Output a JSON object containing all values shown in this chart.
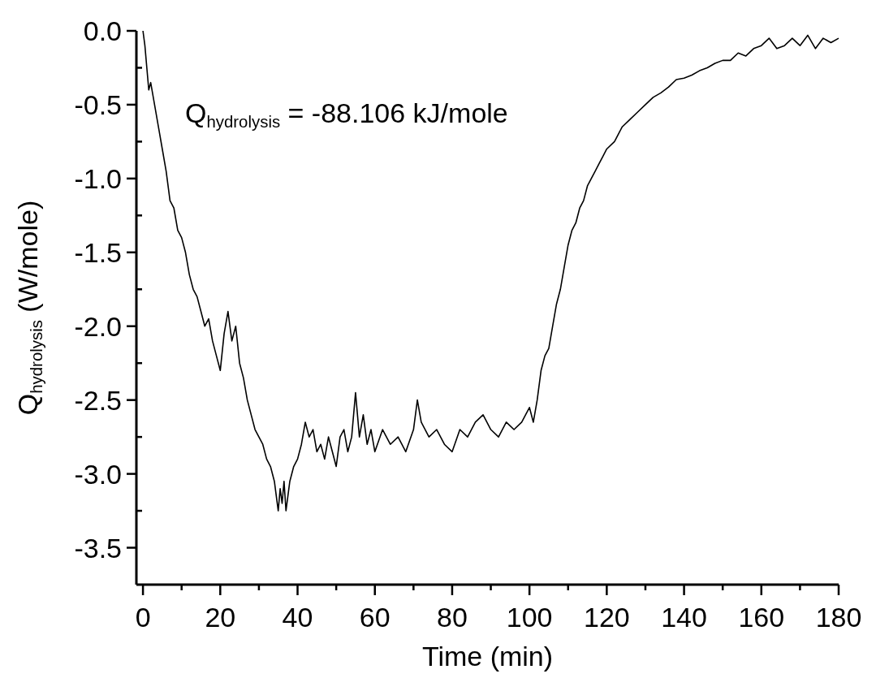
{
  "chart_data": {
    "type": "line",
    "xlabel": "Time (min)",
    "ylabel": "Q$_{hydrolysis}$ (W/mole)",
    "annotations": [
      "Q$_{hydrolysis}$ = -88.106 kJ/mole"
    ],
    "xlim": [
      -1.7,
      180
    ],
    "ylim": [
      -3.75,
      0
    ],
    "xticks": [
      0,
      {
        "value": 10,
        "label": null
      },
      20,
      {
        "value": 30,
        "label": null
      },
      40,
      {
        "value": 50,
        "label": null
      },
      60,
      {
        "value": 70,
        "label": null
      },
      80,
      {
        "value": 90,
        "label": null
      },
      100,
      {
        "value": 110,
        "label": null
      },
      120,
      {
        "value": 130,
        "label": null
      },
      140,
      {
        "value": 150,
        "label": null
      },
      160,
      {
        "value": 170,
        "label": null
      },
      180
    ],
    "yticks": [
      {
        "value": 0,
        "label": "0.0"
      },
      {
        "value": -0.25,
        "label": null
      },
      {
        "value": -0.5,
        "label": "-0.5"
      },
      {
        "value": -0.75,
        "label": null
      },
      {
        "value": -1,
        "label": "-1.0"
      },
      {
        "value": -1.25,
        "label": null
      },
      {
        "value": -1.5,
        "label": "-1.5"
      },
      {
        "value": -1.75,
        "label": null
      },
      {
        "value": -2,
        "label": "-2.0"
      },
      {
        "value": -2.25,
        "label": null
      },
      {
        "value": -2.5,
        "label": "-2.5"
      },
      {
        "value": -2.75,
        "label": null
      },
      {
        "value": -3,
        "label": "-3.0"
      },
      {
        "value": -3.25,
        "label": null
      },
      {
        "value": -3.5,
        "label": "-3.5"
      }
    ],
    "grid": false,
    "marker": "none",
    "line_style": "solid",
    "series": [
      {
        "color": "#000000",
        "x": [
          0,
          0.5,
          1,
          1.5,
          2,
          3,
          4,
          5,
          6,
          7,
          8,
          9,
          10,
          11,
          12,
          13,
          14,
          15,
          16,
          17,
          18,
          19,
          20,
          21,
          22,
          23,
          24,
          25,
          26,
          27,
          28,
          29,
          30,
          31,
          32,
          33,
          34,
          35,
          35.5,
          36,
          36.5,
          37,
          38,
          39,
          40,
          41,
          42,
          43,
          44,
          45,
          46,
          47,
          48,
          49,
          50,
          51,
          52,
          53,
          54,
          55,
          56,
          57,
          58,
          59,
          60,
          62,
          64,
          66,
          68,
          70,
          71,
          72,
          74,
          76,
          78,
          80,
          82,
          84,
          86,
          88,
          90,
          92,
          94,
          96,
          98,
          100,
          101,
          102,
          103,
          104,
          105,
          106,
          107,
          108,
          109,
          110,
          111,
          112,
          113,
          114,
          115,
          116,
          117,
          118,
          119,
          120,
          122,
          124,
          126,
          128,
          130,
          132,
          134,
          136,
          138,
          140,
          142,
          144,
          146,
          148,
          150,
          152,
          154,
          156,
          158,
          160,
          162,
          164,
          166,
          168,
          170,
          172,
          174,
          176,
          178,
          180
        ],
        "values": [
          0,
          -0.1,
          -0.25,
          -0.4,
          -0.35,
          -0.5,
          -0.65,
          -0.8,
          -0.95,
          -1.15,
          -1.2,
          -1.35,
          -1.4,
          -1.5,
          -1.65,
          -1.75,
          -1.8,
          -1.9,
          -2.0,
          -1.95,
          -2.1,
          -2.2,
          -2.3,
          -2.05,
          -1.9,
          -2.1,
          -2.0,
          -2.25,
          -2.35,
          -2.5,
          -2.6,
          -2.7,
          -2.75,
          -2.8,
          -2.9,
          -2.95,
          -3.05,
          -3.25,
          -3.1,
          -3.2,
          -3.05,
          -3.25,
          -3.05,
          -2.95,
          -2.9,
          -2.8,
          -2.65,
          -2.75,
          -2.7,
          -2.85,
          -2.8,
          -2.9,
          -2.75,
          -2.85,
          -2.95,
          -2.75,
          -2.7,
          -2.85,
          -2.75,
          -2.45,
          -2.75,
          -2.6,
          -2.8,
          -2.7,
          -2.85,
          -2.7,
          -2.8,
          -2.75,
          -2.85,
          -2.7,
          -2.5,
          -2.65,
          -2.75,
          -2.7,
          -2.8,
          -2.85,
          -2.7,
          -2.75,
          -2.65,
          -2.6,
          -2.7,
          -2.75,
          -2.65,
          -2.7,
          -2.65,
          -2.55,
          -2.65,
          -2.5,
          -2.3,
          -2.2,
          -2.15,
          -2.0,
          -1.85,
          -1.75,
          -1.6,
          -1.45,
          -1.35,
          -1.3,
          -1.2,
          -1.15,
          -1.05,
          -1.0,
          -0.95,
          -0.9,
          -0.85,
          -0.8,
          -0.75,
          -0.65,
          -0.6,
          -0.55,
          -0.5,
          -0.45,
          -0.42,
          -0.38,
          -0.33,
          -0.32,
          -0.3,
          -0.27,
          -0.25,
          -0.22,
          -0.2,
          -0.2,
          -0.15,
          -0.17,
          -0.12,
          -0.1,
          -0.05,
          -0.12,
          -0.1,
          -0.05,
          -0.1,
          -0.03,
          -0.12,
          -0.05,
          -0.08,
          -0.05
        ]
      }
    ]
  }
}
